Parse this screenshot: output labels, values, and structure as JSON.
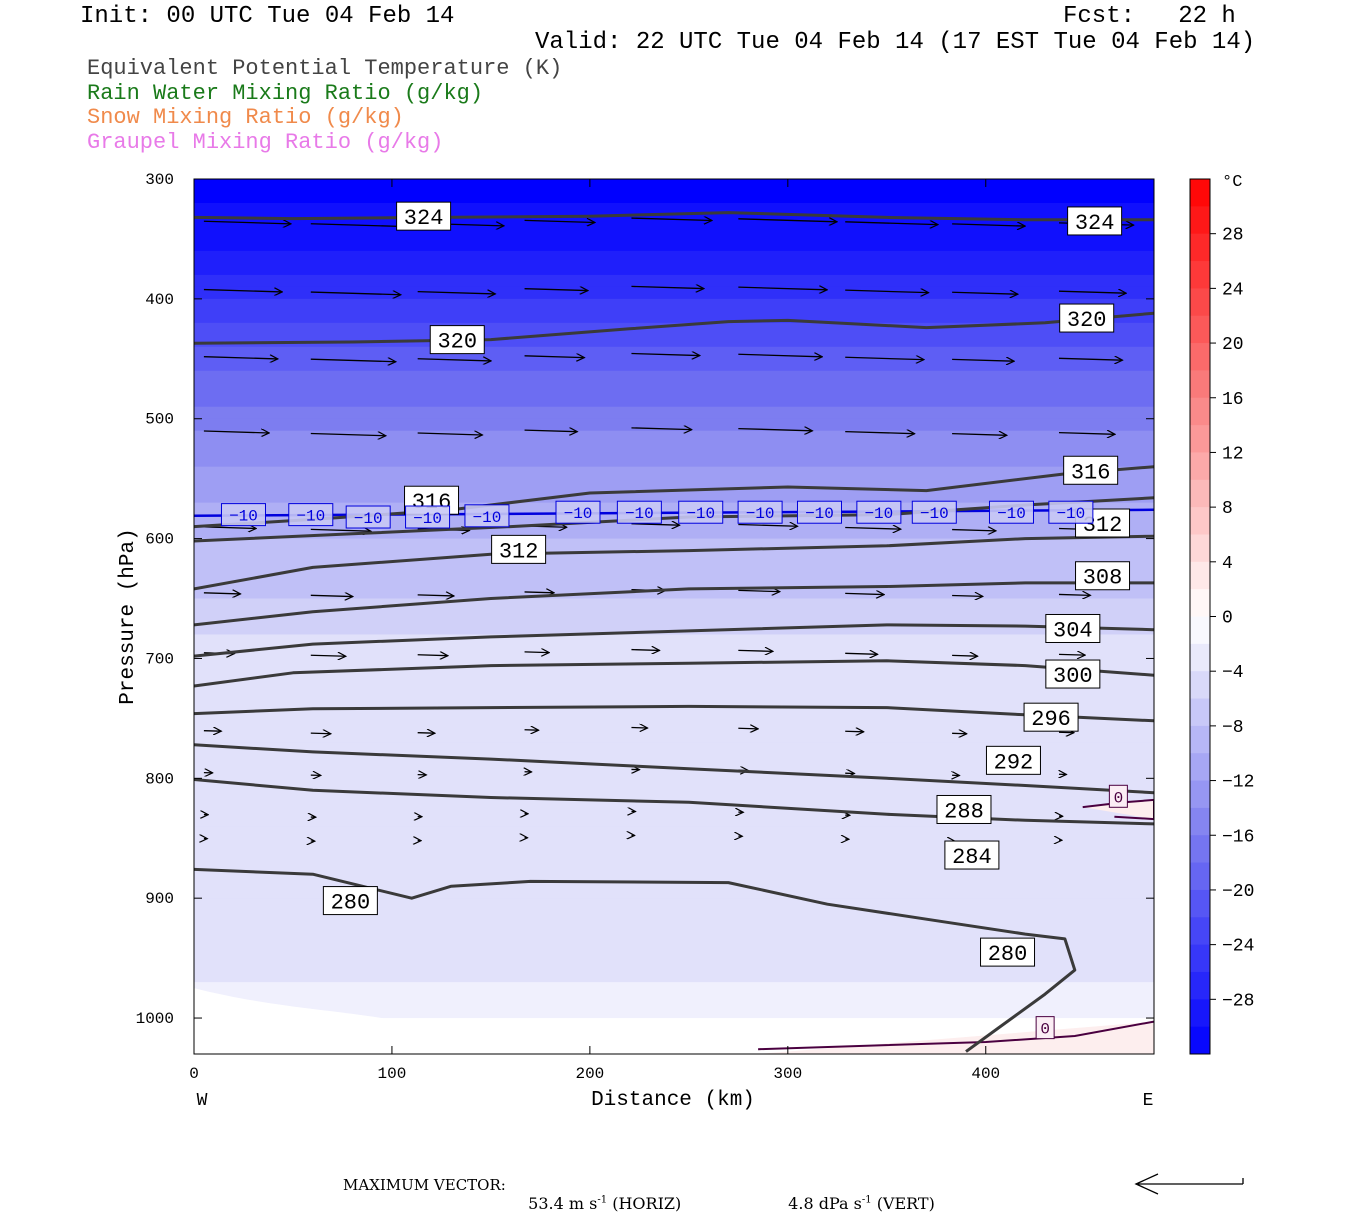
{
  "header": {
    "init": "Init: 00 UTC Tue 04 Feb 14",
    "fcst": "Fcst:   22 h",
    "valid": "Valid: 22 UTC Tue 04 Feb 14 (17 EST Tue 04 Feb 14)"
  },
  "legend": [
    {
      "label": "Equivalent Potential Temperature (K)",
      "color": "#444444"
    },
    {
      "label": "Rain Water Mixing Ratio (g/kg)",
      "color": "#1a7a1a"
    },
    {
      "label": "Snow Mixing Ratio (g/kg)",
      "color": "#f08a4b"
    },
    {
      "label": "Graupel Mixing Ratio (g/kg)",
      "color": "#e87ae8"
    }
  ],
  "footer": {
    "max_vector_label": "MAXIMUM VECTOR:",
    "horiz_value": "53.4",
    "horiz_unit": "m s",
    "horiz_tag": "(HORIZ)",
    "vert_value": "4.8",
    "vert_unit": "dPa s",
    "vert_tag": "(VERT)",
    "exp": "-1"
  },
  "chart_data": {
    "type": "contour",
    "xlabel": "Distance (km)",
    "ylabel": "Pressure (hPa)",
    "xlim": [
      0,
      485
    ],
    "ylim": [
      1030,
      300
    ],
    "x_ticks": [
      0,
      100,
      200,
      300,
      400
    ],
    "y_ticks": [
      300,
      400,
      500,
      600,
      700,
      800,
      900,
      1000
    ],
    "x_end_labels": {
      "left": "W",
      "right": "E"
    },
    "colorbar": {
      "unit": "°C",
      "range": [
        -32,
        32
      ],
      "tick_labels": [
        "28",
        "24",
        "20",
        "16",
        "12",
        "8",
        "4",
        "0",
        "−4",
        "−8",
        "−12",
        "−16",
        "−20",
        "−24",
        "−28"
      ],
      "tick_values": [
        28,
        24,
        20,
        16,
        12,
        8,
        4,
        0,
        -4,
        -8,
        -12,
        -16,
        -20,
        -24,
        -28
      ]
    },
    "theta_e_contours": [
      {
        "label": "324",
        "points": [
          [
            0,
            332
          ],
          [
            50,
            333
          ],
          [
            120,
            332
          ],
          [
            200,
            331
          ],
          [
            270,
            328
          ],
          [
            350,
            332
          ],
          [
            420,
            334
          ],
          [
            485,
            334
          ]
        ],
        "label_positions": [
          [
            116,
            331
          ],
          [
            455,
            335
          ]
        ]
      },
      {
        "label": "320",
        "points": [
          [
            0,
            437
          ],
          [
            80,
            436
          ],
          [
            150,
            434
          ],
          [
            220,
            425
          ],
          [
            270,
            419
          ],
          [
            300,
            418
          ],
          [
            370,
            424
          ],
          [
            430,
            420
          ],
          [
            485,
            412
          ]
        ],
        "label_positions": [
          [
            133,
            434
          ],
          [
            451,
            416
          ]
        ]
      },
      {
        "label": "316",
        "points": [
          [
            0,
            590
          ],
          [
            60,
            584
          ],
          [
            130,
            576
          ],
          [
            200,
            562
          ],
          [
            300,
            557
          ],
          [
            370,
            560
          ],
          [
            440,
            546
          ],
          [
            485,
            540
          ]
        ],
        "label_positions": [
          [
            120,
            568
          ],
          [
            453,
            543
          ]
        ]
      },
      {
        "label": "312",
        "points": [
          [
            0,
            602
          ],
          [
            80,
            596
          ],
          [
            160,
            590
          ],
          [
            250,
            582
          ],
          [
            350,
            580
          ],
          [
            420,
            572
          ],
          [
            485,
            566
          ]
        ],
        "label_positions": [
          [
            164,
            609
          ],
          [
            459,
            587
          ]
        ]
      },
      {
        "label": "308",
        "points": [
          [
            0,
            642
          ],
          [
            60,
            624
          ],
          [
            150,
            613
          ],
          [
            250,
            610
          ],
          [
            350,
            606
          ],
          [
            420,
            600
          ],
          [
            485,
            598
          ]
        ],
        "label_positions": [
          [
            459,
            631
          ]
        ]
      },
      {
        "label": "304",
        "points": [
          [
            0,
            672
          ],
          [
            60,
            661
          ],
          [
            150,
            650
          ],
          [
            250,
            642
          ],
          [
            350,
            640
          ],
          [
            420,
            637
          ],
          [
            485,
            637
          ]
        ],
        "label_positions": [
          [
            444,
            675
          ]
        ]
      },
      {
        "label": "300",
        "points": [
          [
            0,
            698
          ],
          [
            60,
            688
          ],
          [
            150,
            682
          ],
          [
            250,
            677
          ],
          [
            350,
            672
          ],
          [
            420,
            673
          ],
          [
            485,
            676
          ]
        ],
        "label_positions": [
          [
            444,
            713
          ]
        ]
      },
      {
        "label": "296",
        "points": [
          [
            0,
            723
          ],
          [
            50,
            712
          ],
          [
            150,
            706
          ],
          [
            250,
            704
          ],
          [
            350,
            702
          ],
          [
            420,
            706
          ],
          [
            485,
            714
          ]
        ],
        "label_positions": [
          [
            433,
            749
          ]
        ]
      },
      {
        "label": "292",
        "points": [
          [
            0,
            746
          ],
          [
            60,
            742
          ],
          [
            150,
            741
          ],
          [
            250,
            740
          ],
          [
            350,
            741
          ],
          [
            420,
            747
          ],
          [
            485,
            752
          ]
        ],
        "label_positions": [
          [
            414,
            785
          ]
        ]
      },
      {
        "label": "288",
        "points": [
          [
            0,
            772
          ],
          [
            60,
            778
          ],
          [
            150,
            784
          ],
          [
            250,
            792
          ],
          [
            350,
            800
          ],
          [
            420,
            806
          ],
          [
            485,
            812
          ]
        ],
        "label_positions": [
          [
            389,
            826
          ]
        ]
      },
      {
        "label": "284",
        "points": [
          [
            0,
            801
          ],
          [
            60,
            810
          ],
          [
            150,
            816
          ],
          [
            250,
            820
          ],
          [
            350,
            830
          ],
          [
            420,
            835
          ],
          [
            485,
            838
          ]
        ],
        "label_positions": [
          [
            393,
            864
          ]
        ]
      },
      {
        "label": "280",
        "points": [
          [
            0,
            876
          ],
          [
            60,
            880
          ],
          [
            110,
            900
          ],
          [
            130,
            890
          ],
          [
            170,
            886
          ],
          [
            270,
            887
          ],
          [
            320,
            905
          ],
          [
            380,
            920
          ],
          [
            420,
            930
          ],
          [
            440,
            934
          ],
          [
            445,
            960
          ],
          [
            430,
            980
          ],
          [
            405,
            1010
          ],
          [
            390,
            1028
          ]
        ],
        "label_positions": [
          [
            79,
            902
          ],
          [
            411,
            945
          ]
        ]
      }
    ],
    "temperature_contours": [
      {
        "label": "-10",
        "points": [
          [
            0,
            581
          ],
          [
            485,
            576
          ]
        ],
        "label_positions": [
          [
            25,
            580
          ],
          [
            59,
            580
          ],
          [
            88,
            582
          ],
          [
            118,
            582
          ],
          [
            148,
            581
          ],
          [
            194,
            578
          ],
          [
            225,
            578
          ],
          [
            256,
            578
          ],
          [
            286,
            578
          ],
          [
            316,
            578
          ],
          [
            346,
            578
          ],
          [
            374,
            578
          ],
          [
            413,
            578
          ],
          [
            443,
            578
          ]
        ]
      },
      {
        "label": "0",
        "points": [
          [
            285,
            1026
          ],
          [
            400,
            1020
          ],
          [
            445,
            1015
          ],
          [
            485,
            1003
          ]
        ],
        "label_positions": [
          [
            430,
            1008
          ]
        ]
      },
      {
        "label": "0",
        "points": [
          [
            449,
            824
          ],
          [
            470,
            820
          ],
          [
            485,
            818
          ],
          [
            485,
            834
          ],
          [
            465,
            832
          ]
        ],
        "label_positions": [
          [
            467,
            815
          ]
        ]
      }
    ]
  }
}
